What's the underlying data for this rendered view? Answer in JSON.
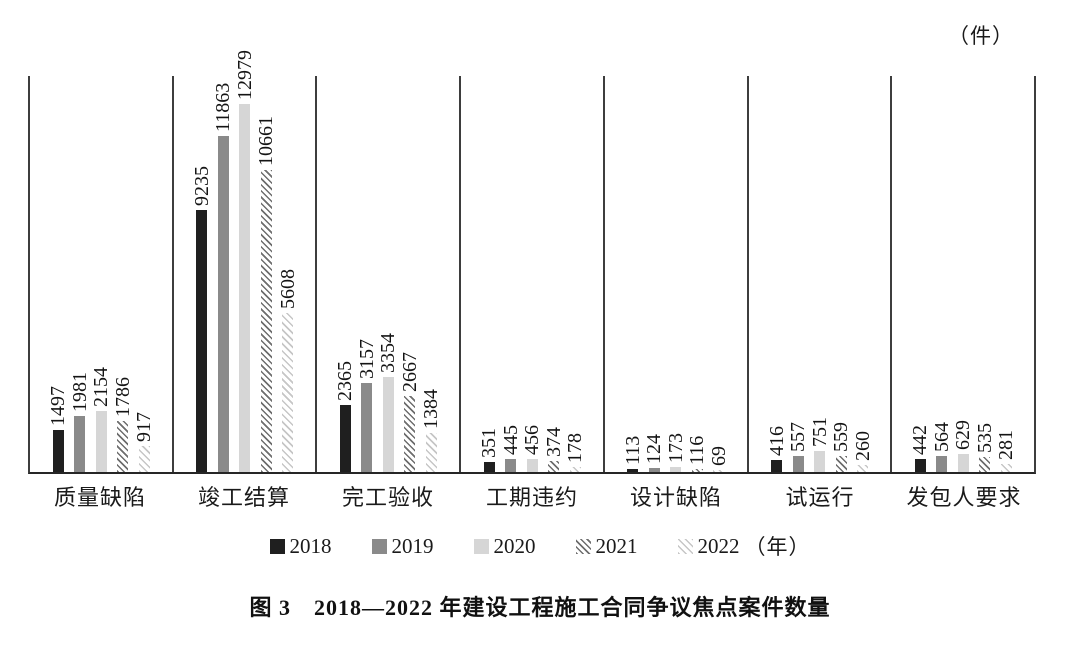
{
  "unit_label": "（件）",
  "caption": "图 3　2018—2022 年建设工程施工合同争议焦点案件数量",
  "legend_year_suffix": "（年）",
  "colors": {
    "bar_2018": "#1f1f1f",
    "bar_2019": "#8a8a8a",
    "bar_2020": "#d6d6d6",
    "hatch_2021": "#6e6e6e",
    "hatch_2022": "#c6c6c6",
    "axis_line": "#3d3d3d"
  },
  "chart_data": {
    "type": "bar",
    "title": "图 3 2018—2022 年建设工程施工合同争议焦点案件数量",
    "xlabel": "",
    "ylabel": "（件）",
    "ylim": [
      0,
      14050
    ],
    "grid": "vertical-category-separators",
    "legend_position": "bottom",
    "value_labels": "rotated-90-above-bars",
    "categories": [
      "质量缺陷",
      "竣工结算",
      "完工验收",
      "工期违约",
      "设计缺陷",
      "试运行",
      "发包人要求"
    ],
    "series": [
      {
        "name": "2018",
        "style": {
          "type": "solid",
          "color": "#1f1f1f"
        },
        "values": [
          1497,
          9235,
          2365,
          351,
          113,
          416,
          442
        ]
      },
      {
        "name": "2019",
        "style": {
          "type": "solid",
          "color": "#8a8a8a"
        },
        "values": [
          1981,
          11863,
          3157,
          445,
          124,
          557,
          564
        ]
      },
      {
        "name": "2020",
        "style": {
          "type": "solid",
          "color": "#d6d6d6"
        },
        "values": [
          2154,
          12979,
          3354,
          456,
          173,
          751,
          629
        ]
      },
      {
        "name": "2021",
        "style": {
          "type": "hatch",
          "color": "#6e6e6e",
          "period": 4.4,
          "line": 1.6
        },
        "values": [
          1786,
          10661,
          2667,
          374,
          116,
          559,
          535
        ]
      },
      {
        "name": "2022",
        "style": {
          "type": "hatch",
          "color": "#c6c6c6",
          "period": 5,
          "line": 1.6
        },
        "values": [
          917,
          5608,
          1384,
          178,
          69,
          260,
          281
        ]
      }
    ]
  }
}
